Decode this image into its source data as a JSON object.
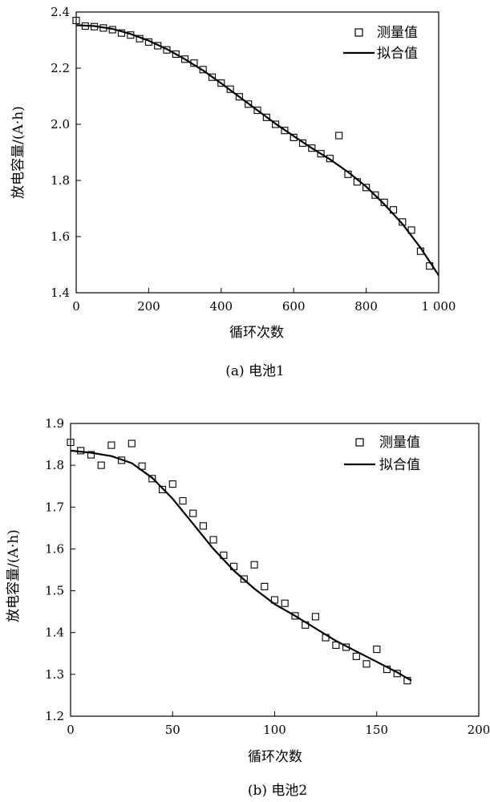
{
  "chart_data": [
    {
      "id": "a",
      "type": "scatter",
      "caption": "(a) 电池1",
      "xlabel": "循环次数",
      "ylabel": "放电容量/(A·h)",
      "xlim": [
        0,
        1000
      ],
      "ylim": [
        1.4,
        2.4
      ],
      "xticks": [
        0,
        200,
        400,
        600,
        800,
        1000
      ],
      "xtick_labels": [
        "0",
        "200",
        "400",
        "600",
        "800",
        "1 000"
      ],
      "yticks": [
        1.4,
        1.6,
        1.8,
        2.0,
        2.2,
        2.4
      ],
      "ytick_labels": [
        "1.4",
        "1.6",
        "1.8",
        "2.0",
        "2.2",
        "2.4"
      ],
      "grid": false,
      "legend_position": "top-right",
      "legend": [
        {
          "label": "测量值",
          "marker": "open-square"
        },
        {
          "label": "拟合值",
          "marker": "line"
        }
      ],
      "series": [
        {
          "name": "测量值",
          "kind": "scatter",
          "x": [
            0,
            25,
            50,
            75,
            100,
            125,
            150,
            175,
            200,
            225,
            250,
            275,
            300,
            325,
            350,
            375,
            400,
            425,
            450,
            475,
            500,
            525,
            550,
            575,
            600,
            625,
            650,
            675,
            700,
            725,
            750,
            775,
            800,
            825,
            850,
            875,
            900,
            925,
            950,
            975
          ],
          "y": [
            2.37,
            2.35,
            2.348,
            2.343,
            2.337,
            2.325,
            2.318,
            2.305,
            2.293,
            2.28,
            2.265,
            2.25,
            2.232,
            2.218,
            2.195,
            2.168,
            2.147,
            2.125,
            2.098,
            2.072,
            2.05,
            2.025,
            2.0,
            1.978,
            1.953,
            1.933,
            1.915,
            1.895,
            1.878,
            1.96,
            1.822,
            1.795,
            1.775,
            1.748,
            1.722,
            1.695,
            1.652,
            1.623,
            1.548,
            1.495
          ]
        },
        {
          "name": "拟合值",
          "kind": "line",
          "x": [
            0,
            50,
            100,
            150,
            200,
            250,
            300,
            350,
            400,
            450,
            500,
            550,
            600,
            650,
            700,
            750,
            800,
            850,
            900,
            950,
            1000
          ],
          "y": [
            2.353,
            2.35,
            2.34,
            2.322,
            2.298,
            2.268,
            2.232,
            2.192,
            2.146,
            2.098,
            2.05,
            2.002,
            1.958,
            1.915,
            1.875,
            1.83,
            1.778,
            1.715,
            1.645,
            1.56,
            1.462
          ]
        }
      ]
    },
    {
      "id": "b",
      "type": "scatter",
      "caption": "(b) 电池2",
      "xlabel": "循环次数",
      "ylabel": "放电容量/(A·h)",
      "xlim": [
        0,
        200
      ],
      "ylim": [
        1.2,
        1.9
      ],
      "xticks": [
        0,
        50,
        100,
        150,
        200
      ],
      "xtick_labels": [
        "0",
        "50",
        "100",
        "150",
        "200"
      ],
      "yticks": [
        1.2,
        1.3,
        1.4,
        1.5,
        1.6,
        1.7,
        1.8,
        1.9
      ],
      "ytick_labels": [
        "1.2",
        "1.3",
        "1.4",
        "1.5",
        "1.6",
        "1.7",
        "1.8",
        "1.9"
      ],
      "grid": false,
      "legend_position": "top-right",
      "legend": [
        {
          "label": "测量值",
          "marker": "open-square"
        },
        {
          "label": "拟合值",
          "marker": "line"
        }
      ],
      "series": [
        {
          "name": "测量值",
          "kind": "scatter",
          "x": [
            0,
            5,
            10,
            15,
            20,
            25,
            30,
            35,
            40,
            45,
            50,
            55,
            60,
            65,
            70,
            75,
            80,
            85,
            90,
            95,
            100,
            105,
            110,
            115,
            120,
            125,
            130,
            135,
            140,
            145,
            150,
            155,
            160,
            165
          ],
          "y": [
            1.855,
            1.835,
            1.825,
            1.8,
            1.848,
            1.812,
            1.852,
            1.798,
            1.768,
            1.742,
            1.755,
            1.715,
            1.685,
            1.655,
            1.622,
            1.585,
            1.558,
            1.528,
            1.562,
            1.51,
            1.478,
            1.47,
            1.44,
            1.418,
            1.438,
            1.388,
            1.37,
            1.365,
            1.343,
            1.325,
            1.36,
            1.312,
            1.302,
            1.285
          ]
        },
        {
          "name": "拟合值",
          "kind": "line",
          "x": [
            0,
            10,
            20,
            30,
            40,
            50,
            60,
            70,
            80,
            90,
            100,
            110,
            120,
            130,
            140,
            150,
            160,
            167
          ],
          "y": [
            1.835,
            1.83,
            1.822,
            1.805,
            1.77,
            1.72,
            1.66,
            1.6,
            1.548,
            1.505,
            1.468,
            1.44,
            1.41,
            1.38,
            1.355,
            1.33,
            1.305,
            1.285
          ]
        }
      ]
    }
  ]
}
